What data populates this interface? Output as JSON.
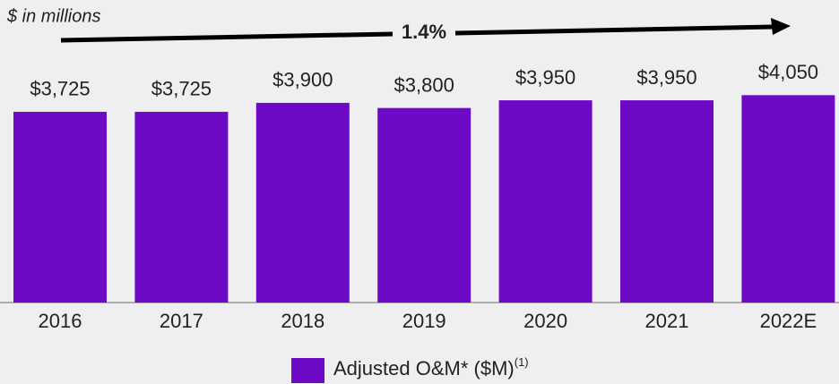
{
  "chart_data": {
    "type": "bar",
    "subtitle": "$ in millions",
    "annotation": "1.4%",
    "categories": [
      "2016",
      "2017",
      "2018",
      "2019",
      "2020",
      "2021",
      "2022E"
    ],
    "series": [
      {
        "name": "Adjusted O&M* ($M)",
        "name_note": "(1)",
        "color": "#6d0ac6",
        "values": [
          3725,
          3725,
          3900,
          3800,
          3950,
          3950,
          4050
        ],
        "value_labels": [
          "$3,725",
          "$3,725",
          "$3,900",
          "$3,800",
          "$3,950",
          "$3,950",
          "$4,050"
        ]
      }
    ],
    "ylim": [
      0,
      5000
    ]
  }
}
